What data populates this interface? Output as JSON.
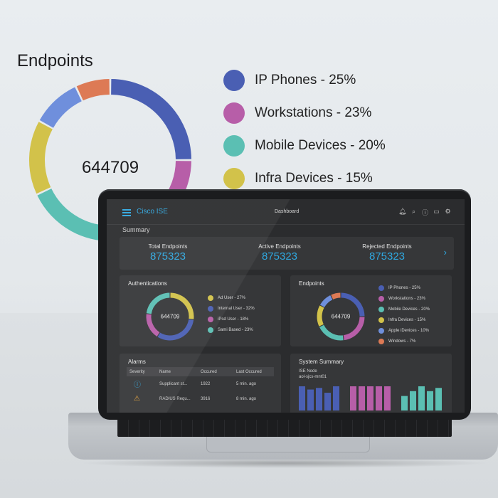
{
  "hero": {
    "title": "Endpoints",
    "center_value": "644709",
    "legend": [
      {
        "label": "IP Phones - 25%",
        "color": "#4a5fb3"
      },
      {
        "label": "Workstations - 23%",
        "color": "#b75ea8"
      },
      {
        "label": "Mobile Devices - 20%",
        "color": "#5bbfb3"
      },
      {
        "label": "Infra Devices - 15%",
        "color": "#d2c24a"
      }
    ],
    "segments": [
      {
        "value": 25,
        "color": "#4a5fb3"
      },
      {
        "value": 23,
        "color": "#b75ea8"
      },
      {
        "value": 20,
        "color": "#5bbfb3"
      },
      {
        "value": 15,
        "color": "#d2c24a"
      },
      {
        "value": 10,
        "color": "#6f8fdc"
      },
      {
        "value": 7,
        "color": "#dd7a55"
      }
    ]
  },
  "app": {
    "brand": "Cisco ISE",
    "title": "Dashboard",
    "icons": [
      "bell-icon",
      "search-icon",
      "help-icon",
      "monitor-icon",
      "gear-icon"
    ]
  },
  "summary": {
    "label": "Summary",
    "kpis": [
      {
        "label": "Total Endpoints",
        "value": "875323"
      },
      {
        "label": "Active Endpoints",
        "value": "875323"
      },
      {
        "label": "Rejected Endpoints",
        "value": "875323"
      }
    ]
  },
  "authentications": {
    "title": "Authentications",
    "center_value": "644709",
    "legend": [
      {
        "label": "Ad User - 27%",
        "color": "#d2c24a",
        "value": 27
      },
      {
        "label": "Internal User - 32%",
        "color": "#4a5fb3",
        "value": 32
      },
      {
        "label": "iPsd User - 18%",
        "color": "#b75ea8",
        "value": 18
      },
      {
        "label": "Sami Based - 23%",
        "color": "#5bbfb3",
        "value": 23
      }
    ]
  },
  "endpoints": {
    "title": "Endpoints",
    "center_value": "644709",
    "legend": [
      {
        "label": "IP Phones - 25%",
        "color": "#4a5fb3",
        "value": 25
      },
      {
        "label": "Workstations - 23%",
        "color": "#b75ea8",
        "value": 23
      },
      {
        "label": "Mobile Devices - 20%",
        "color": "#5bbfb3",
        "value": 20
      },
      {
        "label": "Infra Devices - 15%",
        "color": "#d2c24a",
        "value": 15
      },
      {
        "label": "Apple iDevices - 10%",
        "color": "#6f8fdc",
        "value": 10
      },
      {
        "label": "Windows - 7%",
        "color": "#dd7a55",
        "value": 7
      }
    ]
  },
  "alarms": {
    "title": "Alarms",
    "columns": [
      "Severity",
      "Name",
      "Occured",
      "Last Occured"
    ],
    "rows": [
      {
        "severity_icon": "info-icon",
        "name": "Supplicant st...",
        "occured": "1922",
        "last": "5 min. ago"
      },
      {
        "severity_icon": "warning-icon",
        "name": "RADIUS Requ...",
        "occured": "3916",
        "last": "8 min. ago"
      }
    ]
  },
  "system_summary": {
    "title": "System Summary",
    "node_label": "ISE Node",
    "node_name": "aol-sjcs-mnt01",
    "bar_groups": [
      {
        "color": "#4a5fb3",
        "values": [
          30,
          26,
          28,
          22,
          30
        ]
      },
      {
        "color": "#b75ea8",
        "values": [
          30,
          30,
          30,
          30,
          30
        ]
      },
      {
        "color": "#5bbfb3",
        "values": [
          18,
          24,
          30,
          24,
          28
        ]
      }
    ]
  }
}
